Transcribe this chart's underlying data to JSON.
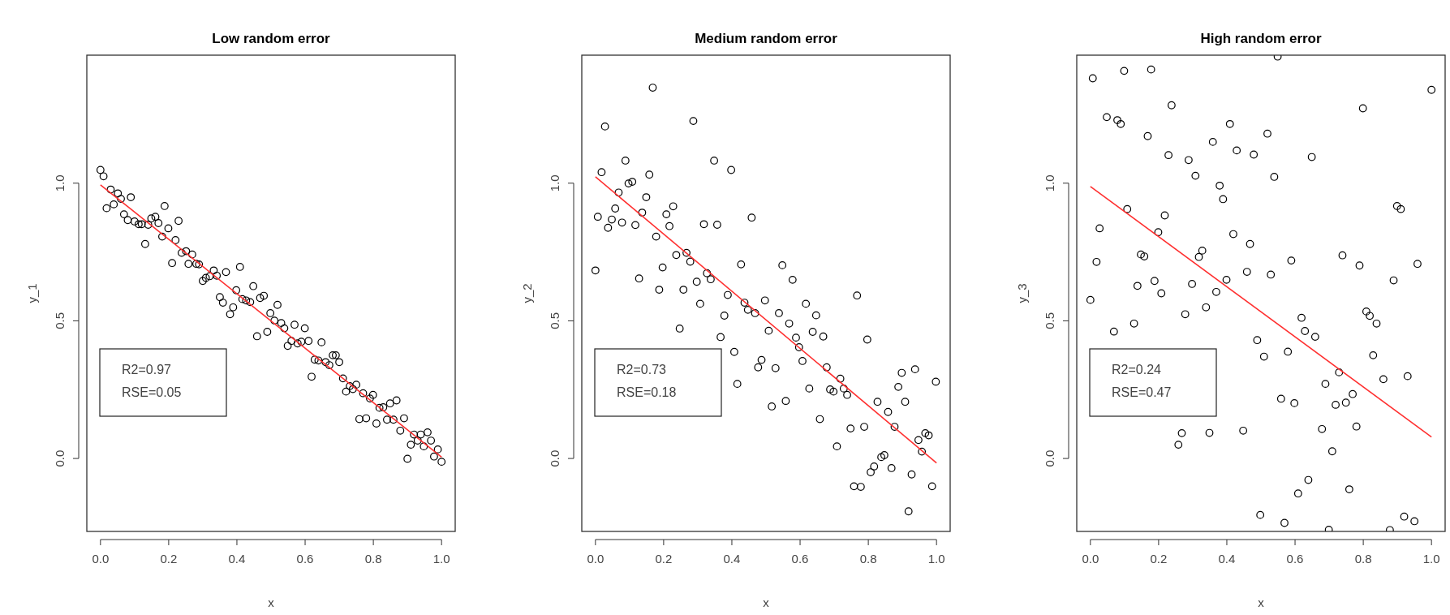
{
  "chart_data": [
    {
      "type": "scatter",
      "title": "Low random error",
      "xlabel": "x",
      "ylabel": "y_1",
      "xlim": [
        -0.04,
        1.04
      ],
      "ylim": [
        -0.265,
        1.465
      ],
      "xticks": [
        {
          "value": 0,
          "label": "0.0"
        },
        {
          "value": 0.2,
          "label": "0.2"
        },
        {
          "value": 0.4,
          "label": "0.4"
        },
        {
          "value": 0.6,
          "label": "0.6"
        },
        {
          "value": 0.8,
          "label": "0.8"
        },
        {
          "value": 1,
          "label": "1.0"
        }
      ],
      "yticks": [
        {
          "value": 0,
          "label": "0.0"
        },
        {
          "value": 0.5,
          "label": "0.5"
        },
        {
          "value": 1,
          "label": "1.0"
        }
      ],
      "grid": false,
      "annotations": [
        "R2=0.97",
        "RSE=0.05"
      ],
      "series": [
        {
          "color": "#000000",
          "marker": "circle",
          "x": [
            0,
            0.009,
            0.03,
            0.018,
            0.039,
            0.051,
            0.06,
            0.089,
            0.069,
            0.08,
            0.1,
            0.112,
            0.121,
            0.131,
            0.14,
            0.149,
            0.161,
            0.17,
            0.188,
            0.181,
            0.199,
            0.21,
            0.22,
            0.229,
            0.238,
            0.251,
            0.269,
            0.258,
            0.281,
            0.289,
            0.3,
            0.309,
            0.32,
            0.332,
            0.341,
            0.368,
            0.35,
            0.359,
            0.38,
            0.389,
            0.409,
            0.398,
            0.416,
            0.427,
            0.439,
            0.448,
            0.459,
            0.468,
            0.479,
            0.489,
            0.498,
            0.51,
            0.519,
            0.53,
            0.539,
            0.549,
            0.56,
            0.569,
            0.578,
            0.589,
            0.599,
            0.61,
            0.619,
            0.628,
            0.639,
            0.648,
            0.66,
            0.671,
            0.681,
            0.69,
            0.7,
            0.711,
            0.72,
            0.731,
            0.74,
            0.75,
            0.759,
            0.77,
            0.779,
            0.79,
            0.799,
            0.809,
            0.818,
            0.829,
            0.84,
            0.849,
            0.859,
            0.868,
            0.879,
            0.89,
            0.9,
            0.91,
            0.919,
            0.93,
            0.939,
            0.948,
            0.959,
            0.969,
            0.978,
            0.989,
            1.0
          ],
          "values": [
            1.048,
            1.025,
            0.977,
            0.909,
            0.923,
            0.963,
            0.943,
            0.949,
            0.887,
            0.866,
            0.861,
            0.851,
            0.851,
            0.779,
            0.849,
            0.872,
            0.878,
            0.855,
            0.917,
            0.806,
            0.836,
            0.71,
            0.793,
            0.863,
            0.747,
            0.753,
            0.741,
            0.707,
            0.707,
            0.705,
            0.645,
            0.656,
            0.662,
            0.683,
            0.664,
            0.677,
            0.586,
            0.566,
            0.524,
            0.549,
            0.696,
            0.611,
            0.579,
            0.574,
            0.568,
            0.626,
            0.444,
            0.583,
            0.591,
            0.46,
            0.528,
            0.501,
            0.558,
            0.492,
            0.473,
            0.409,
            0.427,
            0.486,
            0.418,
            0.424,
            0.473,
            0.427,
            0.297,
            0.359,
            0.356,
            0.422,
            0.35,
            0.339,
            0.375,
            0.375,
            0.35,
            0.291,
            0.243,
            0.263,
            0.252,
            0.268,
            0.143,
            0.237,
            0.146,
            0.218,
            0.231,
            0.127,
            0.184,
            0.186,
            0.141,
            0.2,
            0.141,
            0.211,
            0.101,
            0.146,
            -0.001,
            0.05,
            0.087,
            0.065,
            0.087,
            0.044,
            0.095,
            0.065,
            0.007,
            0.033,
            -0.012
          ]
        },
        {
          "type": "line",
          "color": "#ff3030",
          "x": [
            0,
            1
          ],
          "values": [
            0.994,
            0.005
          ]
        }
      ]
    },
    {
      "type": "scatter",
      "title": "Medium random error",
      "xlabel": "x",
      "ylabel": "y_2",
      "xlim": [
        -0.04,
        1.04
      ],
      "ylim": [
        -0.265,
        1.465
      ],
      "xticks": [
        {
          "value": 0,
          "label": "0.0"
        },
        {
          "value": 0.2,
          "label": "0.2"
        },
        {
          "value": 0.4,
          "label": "0.4"
        },
        {
          "value": 0.6,
          "label": "0.6"
        },
        {
          "value": 0.8,
          "label": "0.8"
        },
        {
          "value": 1,
          "label": "1.0"
        }
      ],
      "yticks": [
        {
          "value": 0,
          "label": "0.0"
        },
        {
          "value": 0.5,
          "label": "0.5"
        },
        {
          "value": 1,
          "label": "1.0"
        }
      ],
      "grid": false,
      "annotations": [
        "R2=0.73",
        "RSE=0.18"
      ],
      "series": [
        {
          "color": "#000000",
          "marker": "circle",
          "x": [
            0,
            0.007,
            0.018,
            0.028,
            0.037,
            0.048,
            0.058,
            0.068,
            0.078,
            0.088,
            0.097,
            0.108,
            0.117,
            0.128,
            0.137,
            0.149,
            0.158,
            0.168,
            0.178,
            0.187,
            0.197,
            0.208,
            0.217,
            0.228,
            0.237,
            0.247,
            0.258,
            0.267,
            0.278,
            0.287,
            0.297,
            0.307,
            0.318,
            0.327,
            0.338,
            0.348,
            0.357,
            0.367,
            0.378,
            0.388,
            0.398,
            0.407,
            0.416,
            0.427,
            0.437,
            0.447,
            0.458,
            0.468,
            0.477,
            0.487,
            0.497,
            0.508,
            0.517,
            0.528,
            0.538,
            0.548,
            0.558,
            0.568,
            0.578,
            0.588,
            0.597,
            0.607,
            0.617,
            0.627,
            0.637,
            0.647,
            0.658,
            0.668,
            0.678,
            0.688,
            0.698,
            0.708,
            0.718,
            0.728,
            0.738,
            0.748,
            0.758,
            0.767,
            0.778,
            0.788,
            0.797,
            0.807,
            0.817,
            0.827,
            0.838,
            0.847,
            0.858,
            0.868,
            0.877,
            0.888,
            0.898,
            0.908,
            0.918,
            0.927,
            0.937,
            0.947,
            0.957,
            0.967,
            0.977,
            0.987,
            0.998
          ],
          "values": [
            0.683,
            0.878,
            1.04,
            1.206,
            0.838,
            0.868,
            0.908,
            0.966,
            0.857,
            1.082,
            0.999,
            1.005,
            0.848,
            0.654,
            0.893,
            0.949,
            1.031,
            1.347,
            0.806,
            0.613,
            0.694,
            0.887,
            0.844,
            0.916,
            0.739,
            0.472,
            0.613,
            0.747,
            0.715,
            1.226,
            0.642,
            0.562,
            0.851,
            0.673,
            0.651,
            1.082,
            0.849,
            0.441,
            0.519,
            0.594,
            1.048,
            0.387,
            0.271,
            0.705,
            0.566,
            0.54,
            0.875,
            0.528,
            0.331,
            0.358,
            0.574,
            0.464,
            0.189,
            0.328,
            0.528,
            0.702,
            0.209,
            0.49,
            0.649,
            0.439,
            0.404,
            0.354,
            0.562,
            0.254,
            0.46,
            0.52,
            0.143,
            0.443,
            0.331,
            0.251,
            0.243,
            0.044,
            0.29,
            0.254,
            0.231,
            0.109,
            -0.101,
            0.592,
            -0.103,
            0.115,
            0.432,
            -0.05,
            -0.029,
            0.206,
            0.005,
            0.012,
            0.169,
            -0.035,
            0.115,
            0.26,
            0.311,
            0.206,
            -0.192,
            -0.058,
            0.324,
            0.067,
            0.025,
            0.092,
            0.084,
            -0.101,
            0.279
          ]
        },
        {
          "type": "line",
          "color": "#ff3030",
          "x": [
            0,
            1
          ],
          "values": [
            1.023,
            -0.016
          ]
        }
      ]
    },
    {
      "type": "scatter",
      "title": "High random error",
      "xlabel": "x",
      "ylabel": "y_3",
      "xlim": [
        -0.04,
        1.04
      ],
      "ylim": [
        -0.265,
        1.465
      ],
      "xticks": [
        {
          "value": 0,
          "label": "0.0"
        },
        {
          "value": 0.2,
          "label": "0.2"
        },
        {
          "value": 0.4,
          "label": "0.4"
        },
        {
          "value": 0.6,
          "label": "0.6"
        },
        {
          "value": 0.8,
          "label": "0.8"
        },
        {
          "value": 1,
          "label": "1.0"
        }
      ],
      "yticks": [
        {
          "value": 0,
          "label": "0.0"
        },
        {
          "value": 0.5,
          "label": "0.5"
        },
        {
          "value": 1,
          "label": "1.0"
        }
      ],
      "grid": false,
      "annotations": [
        "R2=0.24",
        "RSE=0.47"
      ],
      "series": [
        {
          "color": "#000000",
          "marker": "circle",
          "x": [
            0,
            0.007,
            0.018,
            0.027,
            0.048,
            0.069,
            0.079,
            0.089,
            0.099,
            0.108,
            0.128,
            0.138,
            0.148,
            0.158,
            0.168,
            0.178,
            0.188,
            0.199,
            0.208,
            0.218,
            0.229,
            0.238,
            0.258,
            0.268,
            0.278,
            0.288,
            0.298,
            0.308,
            0.318,
            0.328,
            0.339,
            0.349,
            0.359,
            0.369,
            0.379,
            0.389,
            0.399,
            0.409,
            0.419,
            0.429,
            0.448,
            0.459,
            0.468,
            0.479,
            0.489,
            0.498,
            0.509,
            0.519,
            0.529,
            0.539,
            0.549,
            0.559,
            0.569,
            0.579,
            0.589,
            0.598,
            0.609,
            0.619,
            0.629,
            0.639,
            0.649,
            0.659,
            0.679,
            0.689,
            0.699,
            0.709,
            0.719,
            0.729,
            0.739,
            0.749,
            0.759,
            0.769,
            0.78,
            0.789,
            0.799,
            0.809,
            0.819,
            0.829,
            0.839,
            0.859,
            0.878,
            0.889,
            0.899,
            0.91,
            0.92,
            0.93,
            0.95,
            0.959,
            1.0
          ],
          "values": [
            0.576,
            1.381,
            0.714,
            0.836,
            1.24,
            0.461,
            1.229,
            1.215,
            1.408,
            0.906,
            0.49,
            0.627,
            0.741,
            0.734,
            1.171,
            1.413,
            0.645,
            0.822,
            0.6,
            0.883,
            1.102,
            1.283,
            0.05,
            0.092,
            0.524,
            1.084,
            0.634,
            1.027,
            0.732,
            0.755,
            0.549,
            0.093,
            1.15,
            0.605,
            0.991,
            0.942,
            0.649,
            1.215,
            0.815,
            1.119,
            0.101,
            0.678,
            0.779,
            1.104,
            0.43,
            -0.205,
            0.37,
            1.18,
            0.668,
            1.023,
            1.46,
            0.217,
            -0.234,
            0.388,
            0.719,
            0.201,
            -0.127,
            0.511,
            0.463,
            -0.078,
            1.095,
            0.442,
            0.107,
            0.271,
            -0.259,
            0.026,
            0.195,
            0.313,
            0.738,
            0.203,
            -0.112,
            0.234,
            0.116,
            0.701,
            1.272,
            0.534,
            0.518,
            0.375,
            0.49,
            0.288,
            -0.26,
            0.647,
            0.917,
            0.906,
            -0.211,
            0.299,
            -0.228,
            0.707,
            1.339
          ]
        },
        {
          "type": "line",
          "color": "#ff3030",
          "x": [
            0,
            1
          ],
          "values": [
            0.988,
            0.078
          ]
        }
      ]
    }
  ]
}
